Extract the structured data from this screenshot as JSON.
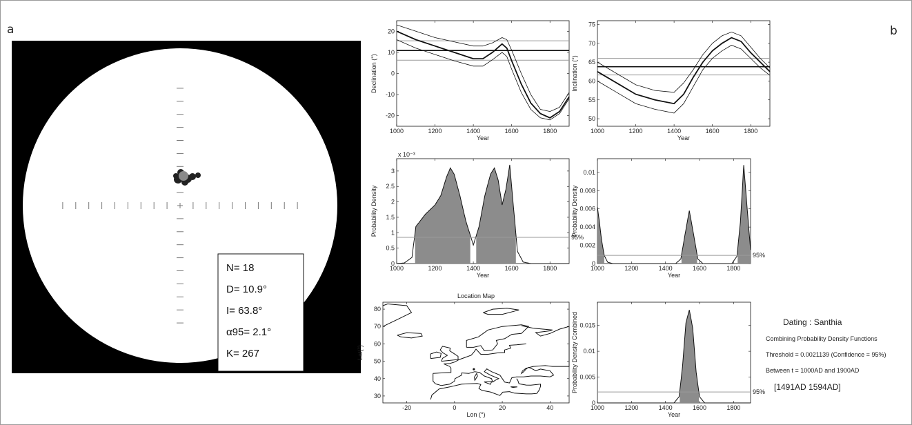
{
  "figure": {
    "label_a": "a",
    "label_b": "b"
  },
  "stereonet": {
    "stats": [
      {
        "key": "n",
        "text": "N= 18"
      },
      {
        "key": "d",
        "text": "D= 10.9°"
      },
      {
        "key": "i",
        "text": "I= 63.8°"
      },
      {
        "key": "a95",
        "text": "α95= 2.1°"
      },
      {
        "key": "k",
        "text": "K= 267"
      }
    ]
  },
  "dating": {
    "title": "Dating : Santhia",
    "line1": "Combining Probability Density Functions",
    "line2": "Threshold = 0.0021139 (Confidence = 95%)",
    "line3": "Between t = 1000AD and 1900AD",
    "result": "[1491AD   1594AD]"
  },
  "colors": {
    "fill": "#8c8c8c",
    "line": "#111111",
    "ref": "#9a9a9a"
  },
  "chart_data": [
    {
      "id": "declination",
      "type": "line",
      "xlabel": "Year",
      "ylabel": "Declination (°)",
      "xlim": [
        1000,
        1900
      ],
      "ylim": [
        -25,
        25
      ],
      "xticks": [
        1000,
        1200,
        1400,
        1600,
        1800
      ],
      "yticks": [
        -20,
        -10,
        0,
        10,
        20
      ],
      "x": [
        1000,
        1100,
        1200,
        1300,
        1400,
        1450,
        1500,
        1550,
        1575,
        1600,
        1650,
        1700,
        1750,
        1800,
        1850,
        1900
      ],
      "series": [
        {
          "role": "upper",
          "values": [
            23,
            20,
            17,
            15,
            13,
            13,
            14.5,
            17,
            16,
            11,
            0,
            -10,
            -17,
            -18,
            -16,
            -9
          ]
        },
        {
          "role": "mean",
          "values": [
            20,
            16,
            13,
            10,
            7,
            7,
            10,
            14,
            12,
            6,
            -5,
            -14,
            -19,
            -21,
            -18,
            -11
          ]
        },
        {
          "role": "lower",
          "values": [
            16,
            12,
            9,
            6,
            3.5,
            3.5,
            6.5,
            10,
            8,
            2,
            -9,
            -17,
            -21,
            -22,
            -19,
            -12
          ]
        }
      ],
      "hlines": [
        {
          "role": "measured",
          "value": 10.9
        },
        {
          "role": "ci_upper",
          "value": 15.5
        },
        {
          "role": "ci_lower",
          "value": 6.3
        }
      ]
    },
    {
      "id": "inclination",
      "type": "line",
      "xlabel": "Year",
      "ylabel": "Inclination (°)",
      "xlim": [
        1000,
        1900
      ],
      "ylim": [
        48,
        76
      ],
      "xticks": [
        1000,
        1200,
        1400,
        1600,
        1800
      ],
      "yticks": [
        50,
        55,
        60,
        65,
        70,
        75
      ],
      "x": [
        1000,
        1100,
        1200,
        1300,
        1400,
        1450,
        1500,
        1550,
        1600,
        1650,
        1700,
        1750,
        1800,
        1850,
        1900
      ],
      "series": [
        {
          "role": "upper",
          "values": [
            65,
            62,
            59,
            57.5,
            57,
            59.5,
            63,
            67,
            70,
            72,
            73,
            72,
            69,
            66,
            63.5
          ]
        },
        {
          "role": "mean",
          "values": [
            62.5,
            59.5,
            56.5,
            55,
            54,
            56.5,
            61,
            65,
            68,
            70,
            71.5,
            70.5,
            67.5,
            65,
            62.5
          ]
        },
        {
          "role": "lower",
          "values": [
            60,
            57,
            54,
            52.5,
            51.5,
            54,
            58.5,
            63,
            66,
            68,
            69.5,
            68.5,
            66,
            63.5,
            61.5
          ]
        }
      ],
      "hlines": [
        {
          "role": "measured",
          "value": 63.8
        },
        {
          "role": "ci_upper",
          "value": 66.0
        },
        {
          "role": "ci_lower",
          "value": 61.6
        }
      ]
    },
    {
      "id": "pdf_declination",
      "type": "area",
      "xlabel": "Year",
      "ylabel": "Probability Density",
      "xlim": [
        1000,
        1900
      ],
      "ylim": [
        0,
        0.0034
      ],
      "multiplier_label": "x 10⁻³",
      "tick_scale": 1000,
      "xticks": [
        1000,
        1200,
        1400,
        1600,
        1800
      ],
      "yticks": [
        0,
        0.0005,
        0.001,
        0.0015,
        0.002,
        0.0025,
        0.003
      ],
      "x": [
        1000,
        1040,
        1080,
        1100,
        1150,
        1200,
        1230,
        1260,
        1280,
        1300,
        1330,
        1360,
        1400,
        1430,
        1460,
        1490,
        1510,
        1530,
        1550,
        1570,
        1590,
        1610,
        1630,
        1660,
        1700,
        1900
      ],
      "values": [
        0,
        2e-05,
        0.0002,
        0.0012,
        0.0016,
        0.0019,
        0.0022,
        0.0028,
        0.0031,
        0.0029,
        0.0022,
        0.0014,
        0.0006,
        0.0012,
        0.0022,
        0.0029,
        0.0031,
        0.0027,
        0.0019,
        0.0024,
        0.0032,
        0.0018,
        0.0004,
        5e-05,
        0,
        0
      ],
      "threshold": 0.00085,
      "threshold_label": "95%"
    },
    {
      "id": "pdf_inclination",
      "type": "area",
      "xlabel": "Year",
      "ylabel": "Probability Density",
      "xlim": [
        1000,
        1900
      ],
      "ylim": [
        0,
        0.0115
      ],
      "xticks": [
        1000,
        1200,
        1400,
        1600,
        1800
      ],
      "yticks": [
        0,
        0.002,
        0.004,
        0.006,
        0.008,
        0.01
      ],
      "x": [
        1000,
        1010,
        1025,
        1040,
        1060,
        1090,
        1460,
        1490,
        1515,
        1540,
        1565,
        1590,
        1620,
        1790,
        1820,
        1840,
        1860,
        1880,
        1900
      ],
      "values": [
        0.0062,
        0.0048,
        0.0025,
        0.0009,
        0.00015,
        0,
        0,
        0.0005,
        0.0032,
        0.0058,
        0.0032,
        0.0005,
        0,
        0,
        0.0008,
        0.0045,
        0.0108,
        0.006,
        0.0015
      ],
      "threshold": 0.0009,
      "threshold_label": "95%"
    },
    {
      "id": "location_map",
      "type": "map",
      "title": "Location Map",
      "xlabel": "Lon (°)",
      "ylabel": "Lat(°)",
      "xlim": [
        -30,
        48
      ],
      "ylim": [
        26,
        84
      ],
      "xticks": [
        -20,
        0,
        20,
        40
      ],
      "yticks": [
        30,
        40,
        50,
        60,
        70,
        80
      ]
    },
    {
      "id": "pdf_combined",
      "type": "area",
      "xlabel": "Year",
      "ylabel": "Probability Density Combined",
      "xlim": [
        1000,
        1900
      ],
      "ylim": [
        0,
        0.0195
      ],
      "xticks": [
        1000,
        1200,
        1400,
        1600,
        1800
      ],
      "yticks": [
        0,
        0.005,
        0.01,
        0.015
      ],
      "x": [
        1000,
        1450,
        1480,
        1500,
        1520,
        1540,
        1560,
        1580,
        1600,
        1630,
        1900
      ],
      "values": [
        0,
        0,
        0.0012,
        0.007,
        0.0155,
        0.018,
        0.0145,
        0.006,
        0.0012,
        0,
        0
      ],
      "threshold": 0.0021139,
      "threshold_label": "95%"
    }
  ]
}
